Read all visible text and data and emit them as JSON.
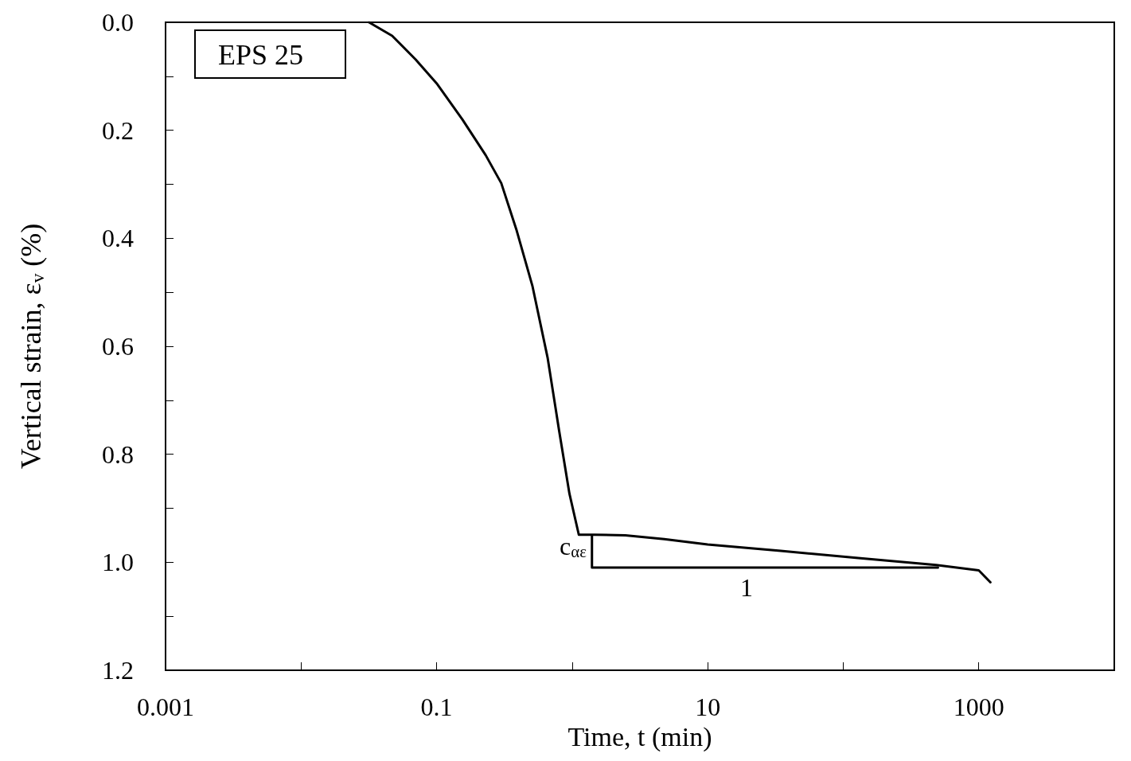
{
  "chart_data": {
    "type": "line",
    "xlabel": "Time, t (min)",
    "ylabel": "Vertical strain, ε$_{v}$ (%)",
    "log": "x",
    "xlim": [
      0.001,
      10000
    ],
    "xticks": [
      0.001,
      {
        "value": 0.01,
        "label": null
      },
      0.1,
      {
        "value": 1,
        "label": null
      },
      10,
      {
        "value": 100,
        "label": null
      },
      1000,
      {
        "value": 10000,
        "label": null
      }
    ],
    "ylim": [
      1.2,
      0
    ],
    "yticks": [
      {
        "value": 0,
        "label": "0.0"
      },
      {
        "value": 0.1,
        "label": null
      },
      0.2,
      {
        "value": 0.3,
        "label": null
      },
      0.4,
      {
        "value": 0.5,
        "label": null
      },
      0.6,
      {
        "value": 0.7,
        "label": null
      },
      0.8,
      {
        "value": 0.9,
        "label": null
      },
      {
        "value": 1.0,
        "label": "1.0"
      },
      {
        "value": 1.1,
        "label": null
      },
      1.2
    ],
    "grid": false,
    "marker": "none",
    "line_style": "solid",
    "series": [
      {
        "color": "#000000",
        "x": [
          0.0317,
          0.047,
          0.07,
          0.1,
          0.155,
          0.23,
          0.3,
          0.39,
          0.51,
          0.66,
          0.8,
          0.955,
          1.12,
          1.46,
          2.47,
          4.78,
          10,
          34.6,
          129,
          484,
          1000,
          1219
        ],
        "values": [
          0,
          0.025,
          0.069,
          0.113,
          0.18,
          0.246,
          0.298,
          0.386,
          0.489,
          0.622,
          0.755,
          0.873,
          0.949,
          0.949,
          0.95,
          0.957,
          0.967,
          0.979,
          0.992,
          1.005,
          1.015,
          1.037
        ]
      },
      {
        "color": "#000000",
        "x": [
          1.4,
          1.4,
          500
        ],
        "values": [
          0.95,
          1.01,
          1.01
        ]
      }
    ],
    "annotations": [
      "EPS 25",
      "c$_{αε}$",
      "1"
    ]
  }
}
